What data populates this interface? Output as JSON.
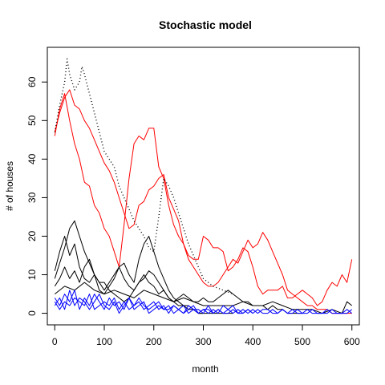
{
  "chart_data": {
    "type": "line",
    "title": "Stochastic model",
    "xlabel": "month",
    "ylabel": "# of houses",
    "xlim": [
      -15,
      615
    ],
    "ylim": [
      -3,
      69
    ],
    "xticks": [
      0,
      100,
      200,
      300,
      400,
      500,
      600
    ],
    "yticks": [
      0,
      10,
      20,
      30,
      40,
      50,
      60
    ],
    "grid": false,
    "legend": "none",
    "series": [
      {
        "color": "#ff0000",
        "style": "solid",
        "x": [
          0,
          10,
          20,
          30,
          40,
          50,
          60,
          70,
          80,
          90,
          100,
          110,
          120,
          130,
          140,
          150,
          160,
          170,
          180,
          190,
          200,
          210,
          220,
          230,
          240,
          250,
          260,
          270,
          280,
          290,
          300,
          310,
          320,
          330,
          340,
          350,
          360,
          370,
          380,
          390,
          400,
          410,
          420,
          430,
          440,
          450,
          460,
          470,
          480,
          490,
          500,
          510,
          520,
          530,
          540,
          550,
          560,
          570,
          580,
          590,
          600
        ],
        "y": [
          46,
          53,
          57,
          50,
          44,
          40,
          34,
          33,
          28,
          26,
          22,
          20,
          16,
          12,
          23,
          35,
          44,
          46,
          45,
          48,
          48,
          38,
          35,
          28,
          23,
          20,
          18,
          15,
          14,
          14,
          20,
          19,
          17,
          17,
          16,
          11,
          12,
          14,
          17,
          16,
          12,
          7,
          5,
          6,
          6,
          6,
          7,
          4,
          4,
          5,
          6,
          5,
          4,
          2,
          3,
          6,
          8,
          7,
          10,
          8,
          14
        ]
      },
      {
        "color": "#ff0000",
        "style": "solid",
        "x": [
          0,
          10,
          20,
          30,
          40,
          50,
          60,
          70,
          80,
          90,
          100,
          110,
          120,
          130,
          140,
          150,
          160,
          170,
          180,
          190,
          200,
          210,
          220,
          230,
          240,
          250,
          260,
          270,
          280,
          290,
          300,
          310,
          320,
          330,
          340,
          350,
          360,
          370,
          380,
          390,
          400,
          410,
          420,
          430,
          440,
          450,
          460,
          470,
          480,
          490,
          500,
          510,
          520,
          530,
          540,
          550,
          560,
          570,
          580,
          590,
          600
        ],
        "y": [
          47,
          52,
          56,
          58,
          54,
          53,
          50,
          48,
          45,
          42,
          39,
          37,
          34,
          30,
          26,
          22,
          23,
          28,
          29,
          32,
          33,
          35,
          36,
          30,
          27,
          24,
          18,
          14,
          12,
          10,
          8,
          7,
          7,
          8,
          10,
          12,
          14,
          13,
          16,
          19,
          17,
          18,
          21,
          19,
          16,
          13,
          10,
          6,
          5,
          4,
          3,
          2,
          2,
          1,
          1,
          1,
          0,
          0,
          0,
          0,
          0
        ]
      },
      {
        "color": "#000000",
        "style": "dotted",
        "x": [
          0,
          10,
          20,
          25,
          30,
          40,
          50,
          55,
          60,
          70,
          80,
          90,
          100,
          110,
          120,
          130,
          140,
          150,
          160,
          170,
          180,
          190,
          200,
          210,
          220,
          230,
          240,
          250,
          260,
          270,
          280,
          290,
          300,
          320,
          340,
          360
        ],
        "y": [
          47,
          54,
          60,
          66,
          62,
          58,
          60,
          64,
          62,
          57,
          52,
          47,
          42,
          40,
          38,
          33,
          30,
          27,
          24,
          22,
          20,
          17,
          16,
          25,
          35,
          33,
          30,
          26,
          22,
          18,
          15,
          12,
          9,
          7,
          6,
          5
        ]
      },
      {
        "color": "#000000",
        "style": "solid",
        "x": [
          0,
          10,
          20,
          30,
          40,
          50,
          60,
          70,
          80,
          90,
          100,
          110,
          120,
          130,
          140,
          150,
          160,
          170,
          180,
          190,
          200,
          210,
          220,
          230,
          240,
          250,
          260,
          270,
          280,
          290,
          300,
          310,
          320,
          330,
          340,
          350,
          360
        ],
        "y": [
          9,
          13,
          17,
          22,
          24,
          20,
          16,
          13,
          10,
          8,
          8,
          6,
          5,
          4,
          3,
          4,
          6,
          8,
          9,
          11,
          10,
          8,
          6,
          4,
          3,
          2,
          2,
          1,
          1,
          0,
          0,
          0,
          0,
          0,
          0,
          0,
          0
        ]
      },
      {
        "color": "#000000",
        "style": "solid",
        "x": [
          0,
          10,
          20,
          30,
          40,
          50,
          60,
          70,
          80,
          90,
          100,
          110,
          120,
          130,
          140,
          150,
          160,
          170,
          180,
          190,
          200,
          210,
          220,
          230,
          240,
          250,
          260,
          270,
          280,
          290,
          300
        ],
        "y": [
          11,
          16,
          20,
          15,
          18,
          12,
          9,
          8,
          10,
          6,
          5,
          7,
          9,
          12,
          13,
          10,
          8,
          14,
          18,
          20,
          16,
          12,
          9,
          6,
          4,
          3,
          2,
          2,
          1,
          0,
          0
        ]
      },
      {
        "color": "#000000",
        "style": "solid",
        "x": [
          0,
          10,
          20,
          30,
          40,
          50,
          60,
          70,
          80,
          90,
          100,
          110,
          120,
          130,
          140,
          150,
          160,
          170,
          180,
          190,
          200,
          210,
          220,
          230,
          240,
          250,
          260,
          270,
          280,
          290,
          300,
          310,
          320,
          330,
          340,
          350,
          360,
          370,
          380,
          390,
          400,
          410,
          420,
          430,
          440,
          450,
          460,
          470,
          480,
          490,
          500
        ],
        "y": [
          7,
          9,
          12,
          9,
          11,
          8,
          12,
          14,
          10,
          8,
          6,
          8,
          10,
          12,
          9,
          7,
          6,
          8,
          10,
          8,
          7,
          5,
          6,
          4,
          3,
          4,
          5,
          4,
          3,
          3,
          4,
          3,
          3,
          4,
          5,
          6,
          5,
          4,
          3,
          3,
          2,
          2,
          2,
          1,
          2,
          1,
          1,
          0,
          0,
          0,
          0
        ]
      },
      {
        "color": "#000000",
        "style": "solid",
        "x": [
          0,
          20,
          40,
          60,
          80,
          100,
          120,
          140,
          160,
          180,
          200,
          220,
          240,
          260,
          280,
          300,
          320,
          340,
          360,
          380,
          400,
          420,
          440,
          460,
          480,
          500,
          520,
          540,
          560,
          580,
          590,
          600
        ],
        "y": [
          5,
          7,
          6,
          8,
          6,
          5,
          6,
          5,
          4,
          6,
          5,
          4,
          3,
          4,
          3,
          2,
          2,
          2,
          2,
          3,
          2,
          2,
          3,
          2,
          1,
          1,
          1,
          0,
          1,
          0,
          3,
          2
        ]
      },
      {
        "color": "#0000ff",
        "style": "solid",
        "x": [
          0,
          10,
          20,
          30,
          40,
          50,
          60,
          70,
          80,
          90,
          100,
          110,
          120,
          130,
          140,
          150,
          160,
          170,
          180,
          190,
          200,
          210,
          220,
          230,
          240,
          250,
          260,
          270,
          280,
          290,
          300,
          310,
          320,
          330,
          340,
          350,
          360,
          370,
          380,
          390,
          400,
          410,
          420,
          430,
          440,
          450,
          460,
          470,
          480,
          490,
          500,
          510,
          520,
          530,
          540,
          550,
          560,
          570,
          580,
          590,
          600
        ],
        "y": [
          4,
          2,
          5,
          3,
          6,
          1,
          4,
          2,
          5,
          3,
          1,
          4,
          2,
          3,
          1,
          4,
          2,
          3,
          1,
          2,
          3,
          1,
          2,
          0,
          2,
          1,
          0,
          1,
          2,
          0,
          1,
          0,
          1,
          0,
          2,
          1,
          0,
          1,
          0,
          1,
          0,
          1,
          0,
          0,
          1,
          0,
          1,
          0,
          0,
          1,
          0,
          0,
          1,
          0,
          0,
          0,
          1,
          0,
          0,
          1,
          0
        ]
      },
      {
        "color": "#0000ff",
        "style": "solid",
        "x": [
          0,
          10,
          20,
          30,
          40,
          50,
          60,
          70,
          80,
          90,
          100,
          110,
          120,
          130,
          140,
          150,
          160,
          170,
          180,
          190,
          200,
          210,
          220,
          230,
          240,
          250,
          260,
          270,
          280,
          290,
          300,
          310,
          320,
          330,
          340,
          350,
          360,
          370,
          380,
          390,
          400,
          410,
          420,
          430,
          440,
          450,
          460,
          470,
          480,
          490,
          500,
          510,
          520,
          530,
          540,
          550,
          560,
          570,
          580,
          590,
          600
        ],
        "y": [
          2,
          4,
          1,
          6,
          2,
          4,
          3,
          1,
          3,
          5,
          2,
          1,
          3,
          0,
          2,
          4,
          1,
          2,
          3,
          0,
          1,
          2,
          1,
          2,
          0,
          1,
          2,
          0,
          1,
          1,
          0,
          2,
          0,
          1,
          0,
          1,
          2,
          0,
          1,
          0,
          1,
          0,
          1,
          1,
          0,
          0,
          1,
          0,
          1,
          0,
          0,
          1,
          0,
          0,
          0,
          1,
          0,
          0,
          0,
          0,
          1
        ]
      },
      {
        "color": "#0000ff",
        "style": "solid",
        "x": [
          0,
          10,
          20,
          30,
          40,
          50,
          60,
          70,
          80,
          90,
          100,
          110,
          120,
          130,
          140,
          150,
          160,
          170,
          180,
          190,
          200,
          210,
          220,
          230,
          240,
          250,
          260,
          270,
          280,
          290,
          300,
          310,
          320,
          330,
          340,
          350,
          360,
          370,
          380,
          390,
          400
        ],
        "y": [
          3,
          1,
          3,
          2,
          4,
          3,
          2,
          5,
          1,
          2,
          3,
          2,
          4,
          1,
          3,
          1,
          2,
          4,
          2,
          1,
          2,
          3,
          1,
          1,
          2,
          1,
          0,
          2,
          1,
          0,
          1,
          1,
          0,
          1,
          0,
          0,
          1,
          0,
          0,
          1,
          0
        ]
      }
    ]
  }
}
